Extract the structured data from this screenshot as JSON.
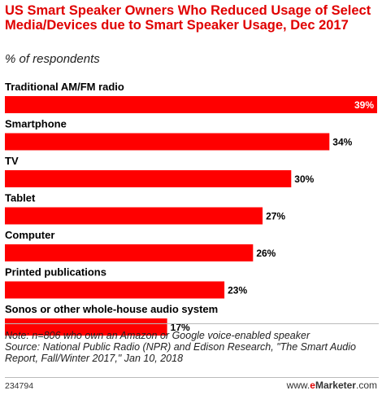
{
  "header": {
    "title": "US Smart Speaker Owners Who Reduced Usage of Select Media/Devices due to Smart Speaker Usage, Dec 2017",
    "subtitle": "% of respondents"
  },
  "chart_data": {
    "type": "bar",
    "orientation": "horizontal",
    "categories": [
      "Traditional AM/FM radio",
      "Smartphone",
      "TV",
      "Tablet",
      "Computer",
      "Printed publications",
      "Sonos or other whole-house audio system"
    ],
    "values": [
      39,
      34,
      30,
      27,
      26,
      23,
      17
    ],
    "value_labels": [
      "39%",
      "34%",
      "30%",
      "27%",
      "26%",
      "23%",
      "17%"
    ],
    "xlim": [
      0,
      39
    ],
    "bar_color": "#ff0000",
    "grid": false
  },
  "footer": {
    "note_line1": "Note: n=806 who own an Amazon or Google voice-enabled speaker",
    "note_line2": "Source: National Public Radio (NPR) and Edison Research, \"The Smart Audio",
    "note_line3": "Report, Fall/Winter 2017,\" Jan 10, 2018",
    "chart_id": "234794",
    "brand_prefix": "www.",
    "brand_e": "e",
    "brand_rest": "Marketer",
    "brand_suffix": ".com"
  }
}
